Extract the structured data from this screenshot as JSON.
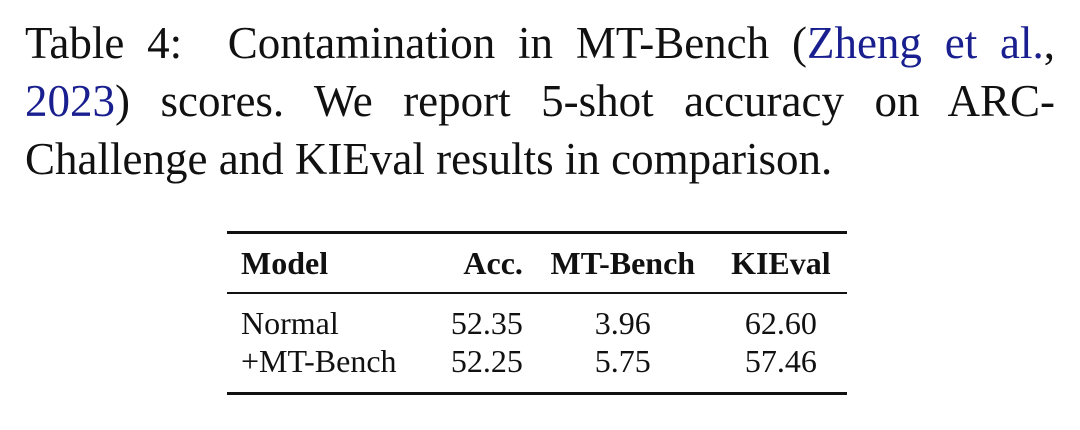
{
  "caption": {
    "prefix": "Table 4:",
    "text_before_cite": "Contamination in MT-Bench (",
    "cite_authors": "Zheng et al.",
    "cite_sep": ", ",
    "cite_year": "2023",
    "text_after_cite": ") scores.  We report 5-shot accuracy on ARC-Challenge and KIEval results in comparison.",
    "link_color": "#1a1f8f"
  },
  "table": {
    "headers": [
      "Model",
      "Acc.",
      "MT-Bench",
      "KIEval"
    ],
    "rows": [
      [
        "Normal",
        "52.35",
        "3.96",
        "62.60"
      ],
      [
        "+MT-Bench",
        "52.25",
        "5.75",
        "57.46"
      ]
    ]
  }
}
